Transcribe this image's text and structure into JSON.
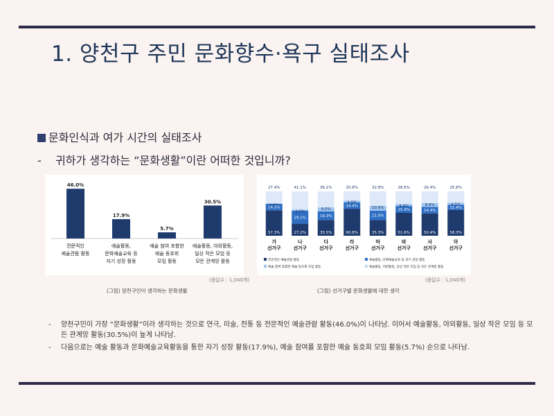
{
  "title": "1. 양천구 주민 문화향수·욕구 실태조사",
  "section_heading": "문화인식과 여가 시간의 실태조사",
  "question": "귀하가 생각하는 “문화생활”이란 어떠한 것입니까?",
  "question_dash": "-",
  "colors": {
    "accent": "#2d2a4a",
    "series1": "#1f3a6d",
    "series2": "#2e6fc4",
    "series3": "#9ec3ee",
    "series4": "#dde8f8"
  },
  "left_chart": {
    "respondents": "(응답수 : 1,040개)",
    "caption": "(그림) 양천구민이 생각하는 문화생활"
  },
  "right_chart": {
    "respondents": "(응답수 : 1,040개)",
    "caption": "(그림) 선거구별 문화생활에 대한 생각"
  },
  "chart_data": [
    {
      "type": "bar",
      "categories": [
        [
          "전문적인",
          "예술관람 활동"
        ],
        [
          "예술활동,",
          "문화예술교육 등",
          "자기 성장 활동"
        ],
        [
          "예술 참여 포함한",
          "예술 동호회",
          "모임 활동"
        ],
        [
          "예술활동, 야외활동,",
          "일상 작은 모임 등",
          "모든 관계망 활동"
        ]
      ],
      "values": [
        46.0,
        17.9,
        5.7,
        30.5
      ],
      "value_labels": [
        "46.0%",
        "17.9%",
        "5.7%",
        "30.5%"
      ],
      "ylim": [
        0,
        50
      ]
    },
    {
      "type": "bar",
      "stacked": true,
      "categories": [
        [
          "가",
          "선거구"
        ],
        [
          "나",
          "선거구"
        ],
        [
          "다",
          "선거구"
        ],
        [
          "라",
          "선거구"
        ],
        [
          "마",
          "선거구"
        ],
        [
          "바",
          "선거구"
        ],
        [
          "사",
          "선거구"
        ],
        [
          "아",
          "선거구"
        ]
      ],
      "series": [
        {
          "name": "전문적인 예술관람 활동",
          "values": [
            57.3,
            27.2,
            35.5,
            60.8,
            35.3,
            51.6,
            50.4,
            58.3
          ],
          "labels": [
            "57.3%",
            "27.2%",
            "35.5%",
            "60.8%",
            "35.3%",
            "51.6%",
            "50.4%",
            "58.3%"
          ]
        },
        {
          "name": "예술활동, 문화예술교육 등 자기 성장 활동",
          "values": [
            14.5,
            29.1,
            19.3,
            14.4,
            21.0,
            15.4,
            14.4,
            11.4
          ],
          "labels": [
            "14.5%",
            "29.1%",
            "19.3%",
            "14.4%",
            "21.0%",
            "15.4%",
            "14.4%",
            "11.4%"
          ]
        },
        {
          "name": "예술 참여 포함한 예술 동호회 모임 활동",
          "values": [
            0.8,
            2.5,
            9.0,
            4.0,
            10.9,
            4.4,
            8.8,
            4.5
          ],
          "labels": [
            "0.8%",
            "2.5%",
            "9.0%",
            "4.0%",
            "10.9%",
            "4.4%",
            "8.8%",
            "4.5%"
          ]
        },
        {
          "name": "예술활동, 야외활동, 일상 작은 모임 등 모든 관계망 활동",
          "values": [
            27.4,
            41.1,
            36.1,
            20.8,
            32.8,
            28.6,
            26.4,
            25.8
          ],
          "labels": [
            "27.4%",
            "41.1%",
            "36.1%",
            "20.8%",
            "32.8%",
            "28.6%",
            "26.4%",
            "25.8%"
          ]
        }
      ],
      "ylim": [
        0,
        100
      ],
      "legend": "bottom"
    }
  ],
  "notes": [
    {
      "bullet": "-",
      "text": "양천구민이 가장 “문화생활”이라 생각하는 것으로 연극, 미술, 전통 등 전문적인 예술관람 활동(46.0%)이 나타남. 이어서 예술활동, 야외활동, 일상 작은 모임 등 모든 관계망 활동(30.5%)이 높게 나타남."
    },
    {
      "bullet": "-",
      "text": "다음으로는 예술 활동과 문화예술교육활동을 통한 자기 성장 활동(17.9%), 예술 참여를 포함한 예술 동호회 모임 활동(5.7%) 순으로 나타남."
    }
  ]
}
